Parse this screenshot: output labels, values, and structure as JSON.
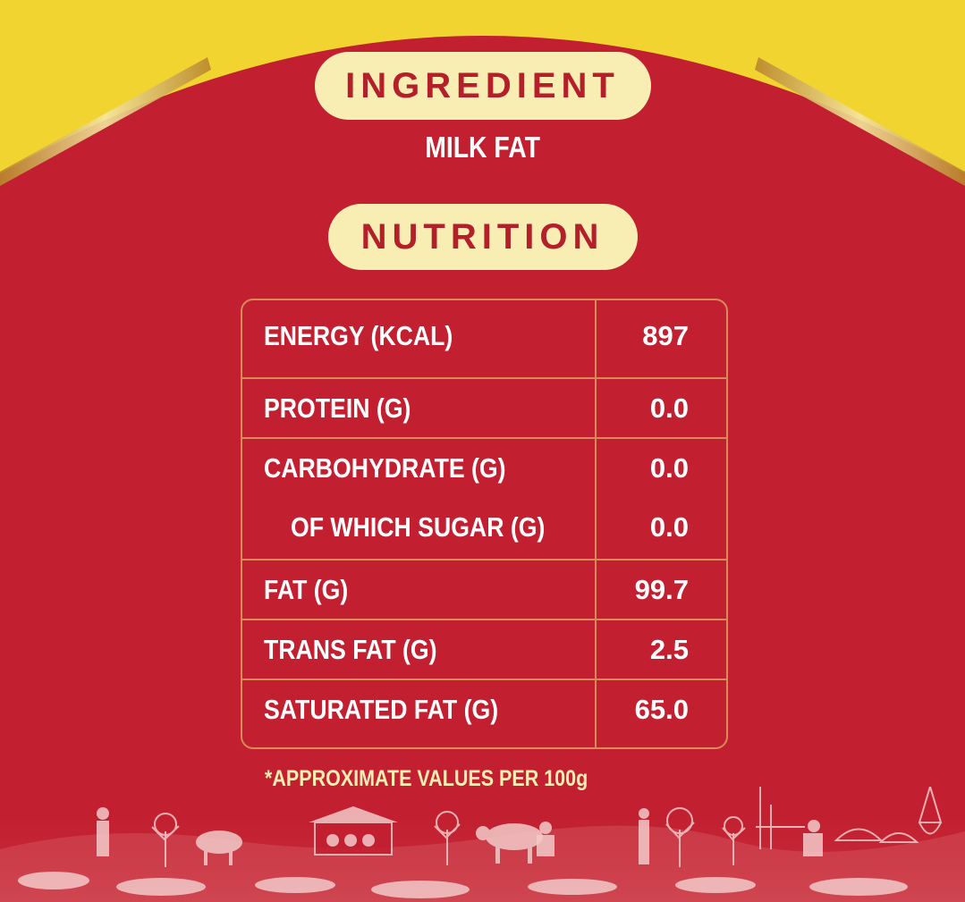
{
  "ingredient": {
    "heading": "INGREDIENT",
    "value": "MILK FAT"
  },
  "nutrition": {
    "heading": "NUTRITION",
    "rows": [
      {
        "label": "ENERGY (KCAL)",
        "value": "897"
      },
      {
        "label": "PROTEIN (G)",
        "value": "0.0"
      },
      {
        "label": "CARBOHYDRATE (G)",
        "value": "0.0"
      },
      {
        "label": "OF WHICH SUGAR (G)",
        "value": "0.0"
      },
      {
        "label": "FAT (G)",
        "value": "99.7"
      },
      {
        "label": "TRANS FAT (G)",
        "value": "2.5"
      },
      {
        "label": "SATURATED FAT (G)",
        "value": "65.0"
      }
    ]
  },
  "footnote": "*APPROXIMATE VALUES PER 100g",
  "colors": {
    "background_red": "#c22030",
    "yellow": "#f2d430",
    "cream": "#f8eeb4",
    "heading_red": "#b3202a",
    "border": "#d98a57"
  }
}
